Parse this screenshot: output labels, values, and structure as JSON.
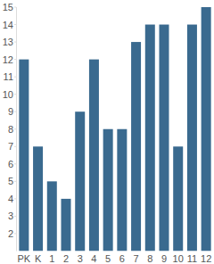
{
  "chart_data": {
    "type": "bar",
    "categories": [
      "PK",
      "K",
      "1",
      "2",
      "3",
      "4",
      "5",
      "6",
      "7",
      "8",
      "9",
      "10",
      "11",
      "12"
    ],
    "values": [
      12,
      7,
      5,
      4,
      9,
      12,
      8,
      8,
      13,
      14,
      14,
      7,
      14,
      15
    ],
    "color": "#3a6a8f",
    "ylim": [
      1,
      15
    ],
    "yticks": [
      2,
      3,
      4,
      5,
      6,
      7,
      8,
      9,
      10,
      11,
      12,
      13,
      14,
      15
    ],
    "grid": false
  }
}
